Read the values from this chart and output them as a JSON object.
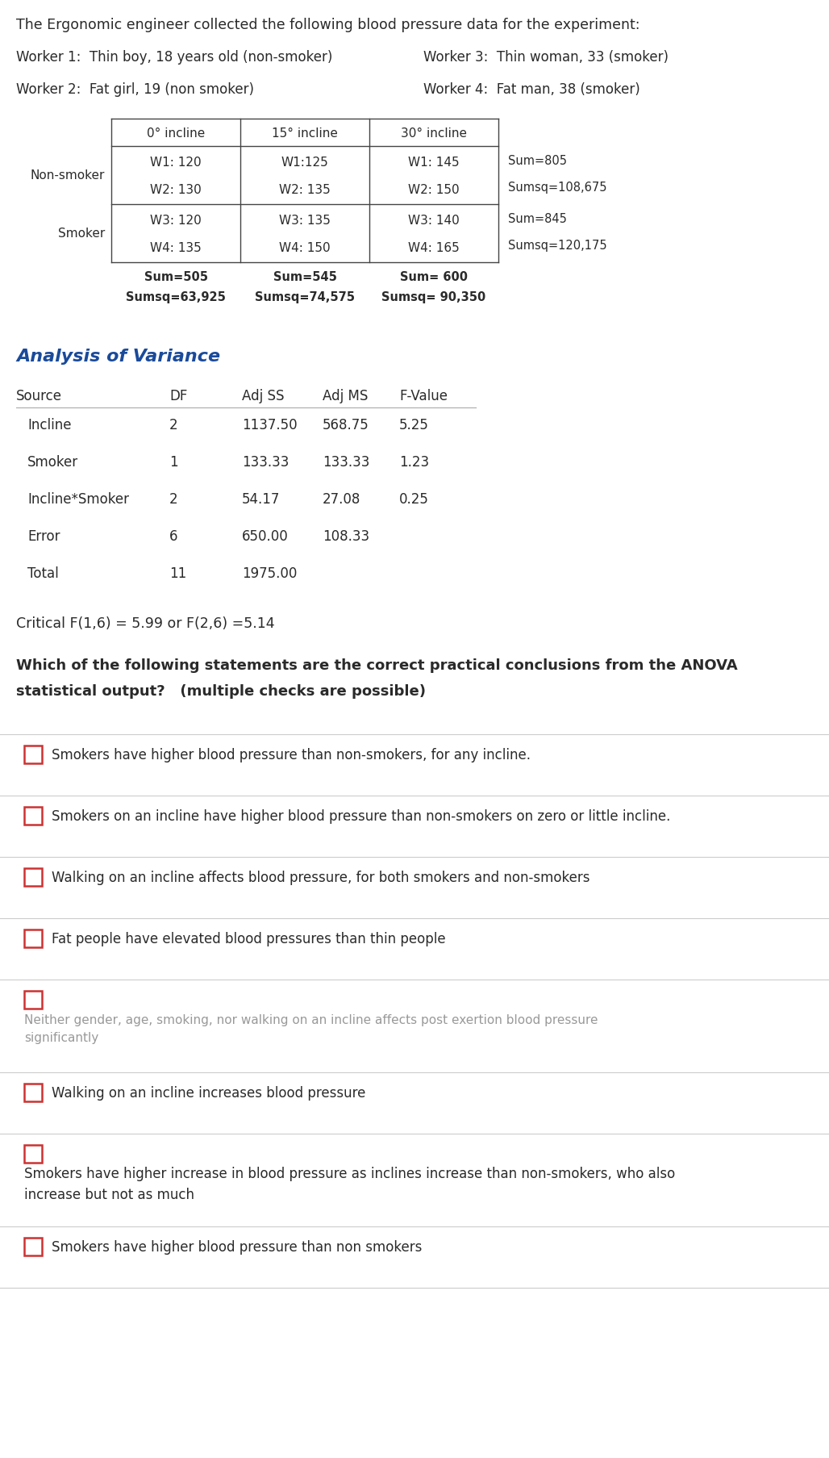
{
  "title": "The Ergonomic engineer collected the following blood pressure data for the experiment:",
  "workers": [
    "Worker 1:  Thin boy, 18 years old (non-smoker)",
    "Worker 3:  Thin woman, 33 (smoker)",
    "Worker 2:  Fat girl, 19 (non smoker)",
    "Worker 4:  Fat man, 38 (smoker)"
  ],
  "col_headers": [
    "0° incline",
    "15° incline",
    "30° incline"
  ],
  "non_smoker_data": [
    [
      "W1: 120",
      "W1:125",
      "W1: 145"
    ],
    [
      "W2: 130",
      "W2: 135",
      "W2: 150"
    ]
  ],
  "smoker_data": [
    [
      "W3: 120",
      "W3: 135",
      "W3: 140"
    ],
    [
      "W4: 135",
      "W4: 150",
      "W4: 165"
    ]
  ],
  "ns_sum1": "Sum=805",
  "ns_sum2": "Sumsq=108,675",
  "sk_sum1": "Sum=845",
  "sk_sum2": "Sumsq=120,175",
  "col_sums": [
    [
      "Sum=505",
      "Sumsq=63,925"
    ],
    [
      "Sum=545",
      "Sumsq=74,575"
    ],
    [
      "Sum= 600",
      "Sumsq= 90,350"
    ]
  ],
  "anova_title": "Analysis of Variance",
  "anova_headers": [
    "Source",
    "DF",
    "Adj SS",
    "Adj MS",
    "F-Value"
  ],
  "anova_rows": [
    [
      "Incline",
      "2",
      "1137.50",
      "568.75",
      "5.25"
    ],
    [
      "Smoker",
      "1",
      "133.33",
      "133.33",
      "1.23"
    ],
    [
      "Incline*Smoker",
      "2",
      "54.17",
      "27.08",
      "0.25"
    ],
    [
      "Error",
      "6",
      "650.00",
      "108.33",
      ""
    ],
    [
      "Total",
      "11",
      "1975.00",
      "",
      ""
    ]
  ],
  "critical_f": "Critical F(1,6) = 5.99 or F(2,6) =5.14",
  "question_line1": "Which of the following statements are the correct practical conclusions from the ANOVA",
  "question_line2": "statistical output?   (multiple checks are possible)",
  "options": [
    {
      "text": "Smokers have higher blood pressure than non-smokers, for any incline.",
      "style": "normal",
      "multiline": false
    },
    {
      "text": "Smokers on an incline have higher blood pressure than non-smokers on zero or little incline.",
      "style": "normal",
      "multiline": false
    },
    {
      "text": "Walking on an incline affects blood pressure, for both smokers and non-smokers",
      "style": "normal",
      "multiline": false
    },
    {
      "text": "Fat people have elevated blood pressures than thin people",
      "style": "normal",
      "multiline": false
    },
    {
      "text": "Neither gender, age, smoking, nor walking on an incline affects post exertion blood pressure\nsignificantly",
      "style": "gray",
      "multiline": true
    },
    {
      "text": "Walking on an incline increases blood pressure",
      "style": "normal",
      "multiline": false
    },
    {
      "text": "Smokers have higher increase in blood pressure as inclines increase than non-smokers, who also\nincrease but not as much",
      "style": "normal_dark",
      "multiline": true
    },
    {
      "text": "Smokers have higher blood pressure than non smokers",
      "style": "normal",
      "multiline": false
    }
  ],
  "bg_color": "#ffffff",
  "text_color": "#2a2a2a",
  "checkbox_color": "#cc3333",
  "anova_title_color": "#1a4a9a",
  "separator_color": "#cccccc",
  "grid_color": "#444444"
}
